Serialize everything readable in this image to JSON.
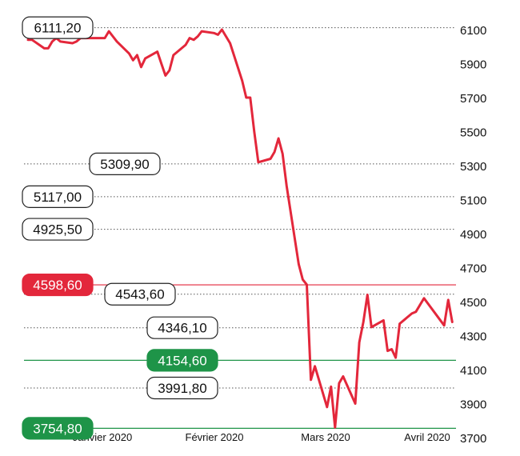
{
  "chart_data": {
    "type": "line",
    "title": "",
    "xlabel": "",
    "ylabel": "",
    "ylim": [
      3700,
      6100
    ],
    "y_ticks": [
      "6100",
      "5900",
      "5700",
      "5500",
      "5300",
      "5100",
      "4900",
      "4700",
      "4500",
      "4300",
      "4100",
      "3900",
      "3700"
    ],
    "x_ticks": [
      "Janvier 2020",
      "Février 2020",
      "Mars 2020",
      "Avril 2020"
    ],
    "grid": false,
    "colors": {
      "line": "#e3273b",
      "resistance": "#e3273b",
      "support": "#1e9448",
      "neutral": "#222222"
    },
    "series": [
      {
        "x": [
          "2020-01-02",
          "2020-01-03",
          "2020-01-06",
          "2020-01-07",
          "2020-01-08",
          "2020-01-09",
          "2020-01-10",
          "2020-01-13",
          "2020-01-14",
          "2020-01-15",
          "2020-01-16",
          "2020-01-17",
          "2020-01-20",
          "2020-01-21",
          "2020-01-22",
          "2020-01-23",
          "2020-01-24",
          "2020-01-27",
          "2020-01-28",
          "2020-01-29",
          "2020-01-30",
          "2020-01-31",
          "2020-02-03",
          "2020-02-04",
          "2020-02-05",
          "2020-02-06",
          "2020-02-07",
          "2020-02-10",
          "2020-02-11",
          "2020-02-12",
          "2020-02-13",
          "2020-02-14",
          "2020-02-17",
          "2020-02-18",
          "2020-02-19",
          "2020-02-20",
          "2020-02-21",
          "2020-02-24",
          "2020-02-25",
          "2020-02-26",
          "2020-02-27",
          "2020-02-28",
          "2020-03-02",
          "2020-03-03",
          "2020-03-04",
          "2020-03-05",
          "2020-03-06",
          "2020-03-09",
          "2020-03-10",
          "2020-03-11",
          "2020-03-12",
          "2020-03-13",
          "2020-03-16",
          "2020-03-17",
          "2020-03-18",
          "2020-03-19",
          "2020-03-20",
          "2020-03-23",
          "2020-03-24",
          "2020-03-25",
          "2020-03-26",
          "2020-03-27",
          "2020-03-30",
          "2020-03-31",
          "2020-04-01",
          "2020-04-02",
          "2020-04-03",
          "2020-04-06",
          "2020-04-07",
          "2020-04-08",
          "2020-04-09",
          "2020-04-14",
          "2020-04-15",
          "2020-04-16"
        ],
        "values": [
          6040,
          6040,
          5990,
          5990,
          6030,
          6050,
          6030,
          6020,
          6030,
          6050,
          6050,
          6050,
          6050,
          6050,
          6090,
          6060,
          6030,
          5960,
          5920,
          5950,
          5880,
          5930,
          5970,
          5900,
          5830,
          5860,
          5950,
          6010,
          6050,
          6040,
          6060,
          6090,
          6080,
          6070,
          6100,
          6060,
          6020,
          5800,
          5700,
          5700,
          5500,
          5320,
          5340,
          5380,
          5460,
          5370,
          5180,
          4720,
          4630,
          4600,
          4040,
          4120,
          3880,
          4000,
          3760,
          4020,
          4060,
          3900,
          4260,
          4380,
          4540,
          4350,
          4390,
          4210,
          4220,
          4170,
          4370,
          4430,
          4440,
          4480,
          4520,
          4360,
          4510,
          4380
        ],
        "color": "#e3273b"
      }
    ],
    "levels": [
      {
        "label": "6111,20",
        "value": 6111.2,
        "kind": "neutral",
        "label_side": "left"
      },
      {
        "label": "5309,90",
        "value": 5309.9,
        "kind": "neutral",
        "label_side": "mid"
      },
      {
        "label": "5117,00",
        "value": 5117.0,
        "kind": "neutral",
        "label_side": "left"
      },
      {
        "label": "4925,50",
        "value": 4925.5,
        "kind": "neutral",
        "label_side": "left"
      },
      {
        "label": "4598,60",
        "value": 4598.6,
        "kind": "resistance",
        "label_side": "left"
      },
      {
        "label": "4543,60",
        "value": 4543.6,
        "kind": "neutral",
        "label_side": "mid"
      },
      {
        "label": "4346,10",
        "value": 4346.1,
        "kind": "neutral",
        "label_side": "right"
      },
      {
        "label": "4154,60",
        "value": 4154.6,
        "kind": "support",
        "label_side": "right"
      },
      {
        "label": "3991,80",
        "value": 3991.8,
        "kind": "neutral",
        "label_side": "right"
      },
      {
        "label": "3754,80",
        "value": 3754.8,
        "kind": "support",
        "label_side": "left"
      }
    ]
  }
}
